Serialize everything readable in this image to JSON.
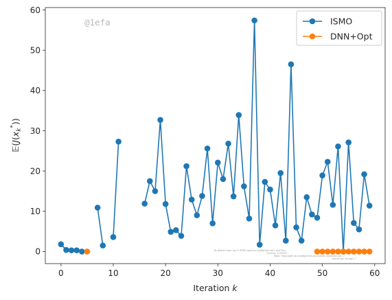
{
  "chart_data": {
    "type": "line",
    "xlabel": "Iteration k",
    "ylabel": "𝔼(J(x_k*))",
    "xlim": [
      -3.0,
      62.0
    ],
    "ylim": [
      -3.0,
      60.6
    ],
    "xticks": [
      0,
      10,
      20,
      30,
      40,
      50,
      60
    ],
    "yticks": [
      0,
      10,
      20,
      30,
      40,
      50,
      60
    ],
    "grid": false,
    "legend_position": "top-right",
    "series": [
      {
        "name": "ISMO",
        "color": "#1f77b4",
        "marker": "circle",
        "segments": [
          {
            "x": [
              0,
              1,
              2,
              3,
              4
            ],
            "y": [
              1.8,
              0.4,
              0.3,
              0.3,
              0.0
            ]
          },
          {
            "x": [
              7,
              8
            ],
            "y": [
              10.9,
              1.5
            ]
          },
          {
            "x": [
              10,
              11
            ],
            "y": [
              3.6,
              27.3
            ]
          },
          {
            "x": [
              16,
              17,
              18,
              19,
              20,
              21,
              22,
              23,
              24,
              25,
              26,
              27,
              28,
              29,
              30,
              31,
              32,
              33,
              34,
              35,
              36,
              37,
              38,
              39,
              40,
              41,
              42,
              43,
              44,
              45,
              46,
              47,
              48,
              49,
              50,
              51,
              52,
              53,
              54,
              55,
              56,
              57,
              58,
              59
            ],
            "y": [
              11.9,
              17.5,
              15.0,
              32.7,
              11.8,
              4.9,
              5.3,
              3.9,
              21.2,
              12.9,
              9.0,
              13.8,
              25.6,
              7.0,
              22.1,
              18.0,
              26.8,
              13.7,
              33.9,
              16.2,
              8.2,
              57.4,
              1.7,
              17.3,
              15.4,
              6.5,
              19.5,
              2.7,
              46.5,
              6.0,
              2.7,
              13.5,
              9.2,
              8.4,
              18.9,
              22.3,
              11.6,
              26.1,
              0.0,
              27.1,
              7.1,
              5.5,
              19.2,
              11.4
            ]
          }
        ]
      },
      {
        "name": "DNN+Opt",
        "color": "#ff7f0e",
        "marker": "circle",
        "segments": [
          {
            "x": [
              5
            ],
            "y": [
              0.0
            ]
          },
          {
            "x": [
              49,
              50,
              51,
              52,
              53,
              54,
              55,
              56,
              57,
              58,
              59
            ],
            "y": [
              0.0,
              0.0,
              0.0,
              0.0,
              0.0,
              0.0,
              0.0,
              0.0,
              0.0,
              0.0,
              0.0
            ]
          }
        ]
      }
    ]
  },
  "watermark": "@1efa",
  "credit_lines": [
    "By Björnt Olsen Lye © BTRS (bjornl.e.lye@gmail.com) and Dev...",
    "Commit: 1c1ef43f...",
    "Repo: https://github.com/Bjornlt/ismo-isotonic-bayesian-opt...",
    "Docstring: no-login-7"
  ]
}
